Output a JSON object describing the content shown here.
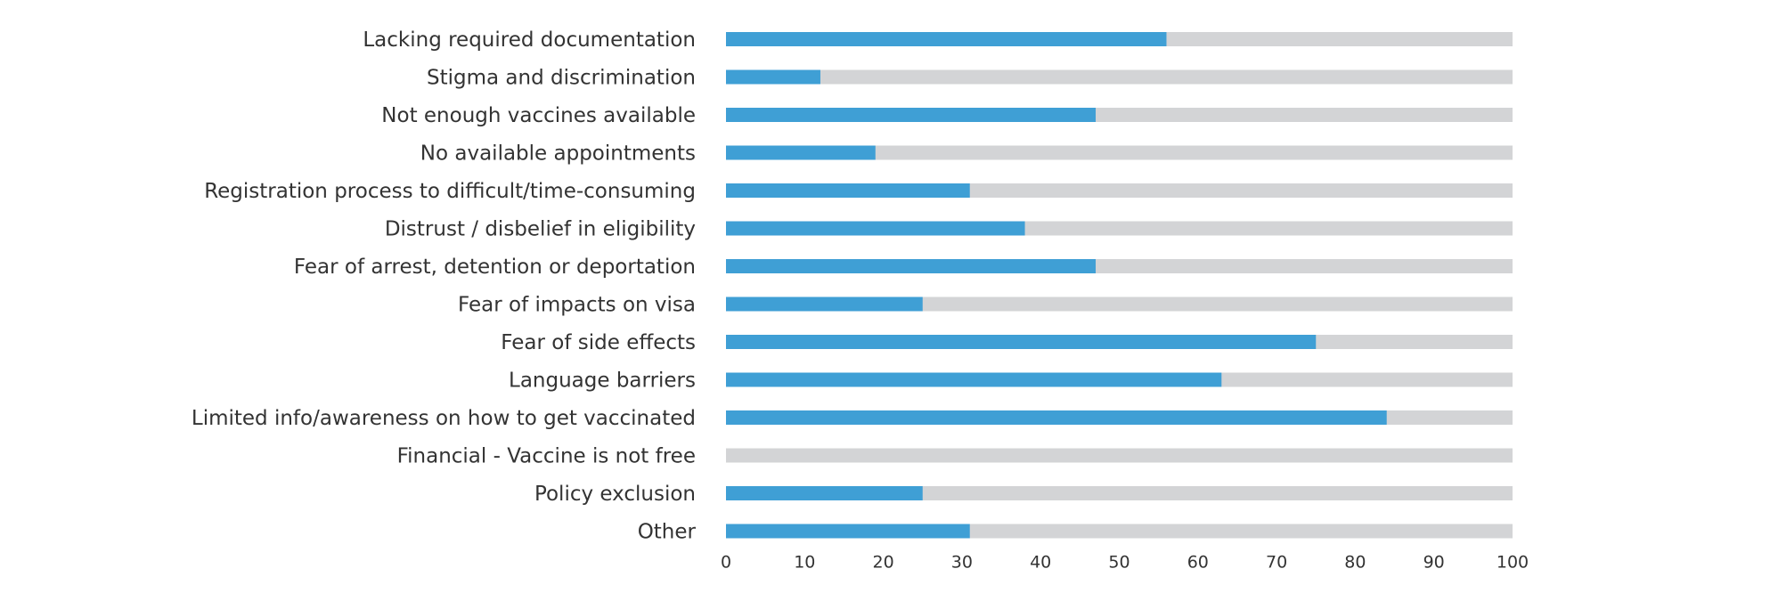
{
  "chart_data": {
    "type": "bar",
    "orientation": "horizontal",
    "stacked_to_total": true,
    "categories": [
      "Lacking required documentation",
      "Stigma and discrimination",
      "Not enough vaccines available",
      "No available appointments",
      "Registration process to difficult/time-consuming",
      "Distrust / disbelief in eligibility",
      "Fear of arrest, detention or deportation",
      "Fear of impacts on visa",
      "Fear of side effects",
      "Language barriers",
      "Limited info/awareness on how to get vaccinated",
      "Financial - Vaccine is not free",
      "Policy exclusion",
      "Other"
    ],
    "values": [
      56,
      12,
      47,
      19,
      31,
      38,
      47,
      25,
      75,
      63,
      84,
      0,
      25,
      31
    ],
    "xlim": [
      0,
      100
    ],
    "xticks": [
      "0",
      "10",
      "20",
      "30",
      "40",
      "50",
      "60",
      "70",
      "80",
      "90",
      "100"
    ],
    "colors": {
      "value": "#3f9fd5",
      "remainder": "#d3d4d6"
    },
    "title": "",
    "xlabel": "",
    "ylabel": "",
    "grid": false,
    "legend": "none"
  }
}
